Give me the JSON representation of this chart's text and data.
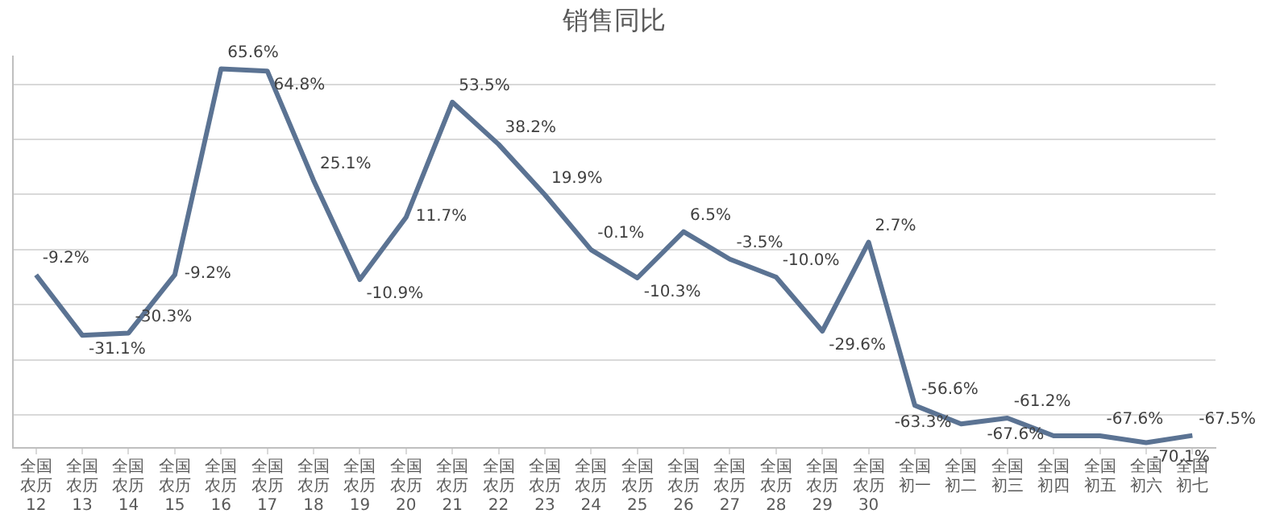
{
  "chart_data": {
    "type": "line",
    "title": "销售同比",
    "categories": [
      "全国农历12",
      "全国农历13",
      "全国农历14",
      "全国农历15",
      "全国农历16",
      "全国农历17",
      "全国农历18",
      "全国农历19",
      "全国农历20",
      "全国农历21",
      "全国农历22",
      "全国农历23",
      "全国农历24",
      "全国农历25",
      "全国农历26",
      "全国农历27",
      "全国农历28",
      "全国农历29",
      "全国农历30",
      "全国初一",
      "全国初二",
      "全国初三",
      "全国初四",
      "全国初五",
      "全国初六",
      "全国初七"
    ],
    "series": [
      {
        "color": "#5b7393",
        "values": [
          -9.2,
          -31.1,
          -30.3,
          -9.2,
          65.6,
          64.8,
          25.1,
          -10.9,
          11.7,
          53.5,
          38.2,
          19.9,
          -0.1,
          -10.3,
          6.5,
          -3.5,
          -10.0,
          -29.6,
          2.7,
          -56.6,
          -63.3,
          -61.2,
          -67.6,
          -67.6,
          -70.1,
          -67.5
        ],
        "value_labels": [
          "-9.2%",
          "-31.1%",
          "-30.3%",
          "-9.2%",
          "65.6%",
          "64.8%",
          "25.1%",
          "-10.9%",
          "11.7%",
          "53.5%",
          "38.2%",
          "19.9%",
          "-0.1%",
          "-10.3%",
          "6.5%",
          "-3.5%",
          "-10.0%",
          "-29.6%",
          "2.7%",
          "-56.6%",
          "-63.3%",
          "-61.2%",
          "-67.6%",
          "-67.6%",
          "-70.1%",
          "-67.5%"
        ]
      }
    ],
    "ylim": [
      -72,
      70
    ],
    "yticks": [
      {
        "value": -60,
        "label": null
      },
      {
        "value": -40,
        "label": null
      },
      {
        "value": -20,
        "label": null
      },
      {
        "value": 0,
        "label": null
      },
      {
        "value": 20,
        "label": null
      },
      {
        "value": 40,
        "label": null
      },
      {
        "value": 60,
        "label": null
      }
    ],
    "grid": "y",
    "legend": false,
    "tick_labels": "x",
    "marker": "none",
    "line_style": "solid"
  }
}
